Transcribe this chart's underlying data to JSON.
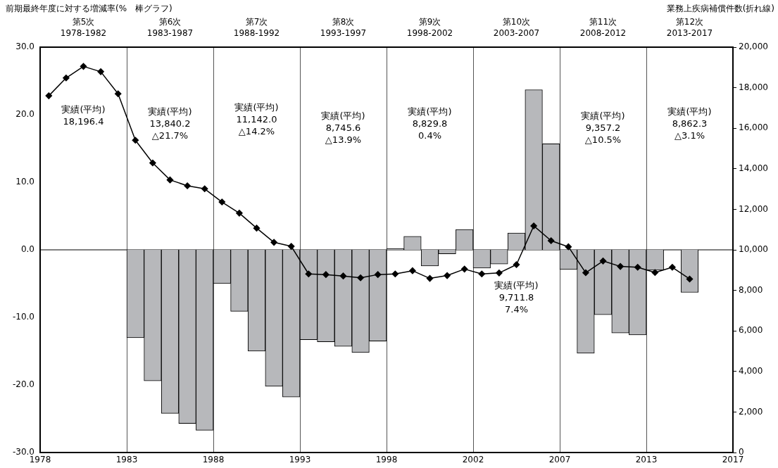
{
  "chart_data": {
    "type": "bar",
    "ylabel": "前期最終年度に対する増減率(%　棒グラフ)",
    "y2label": "業務上疾病補償件数(折れ線)",
    "x": [
      1978,
      1979,
      1980,
      1981,
      1982,
      1983,
      1984,
      1985,
      1986,
      1987,
      1988,
      1989,
      1990,
      1991,
      1992,
      1993,
      1994,
      1995,
      1996,
      1997,
      1998,
      1999,
      2000,
      2001,
      2002,
      2003,
      2004,
      2005,
      2006,
      2007,
      2008,
      2009,
      2010,
      2011,
      2012,
      2013,
      2014,
      2015
    ],
    "series": [
      {
        "color": "#b7b8bb",
        "values": [
          null,
          null,
          null,
          null,
          null,
          -13.0,
          -19.4,
          -24.2,
          -25.7,
          -26.7,
          -5.0,
          -9.1,
          -15.0,
          -20.2,
          -21.8,
          -13.3,
          -13.6,
          -14.3,
          -15.2,
          -13.5,
          0.2,
          2.0,
          -2.4,
          -0.6,
          3.0,
          -2.7,
          -2.1,
          2.5,
          23.7,
          15.7,
          -2.9,
          -15.3,
          -9.6,
          -12.3,
          -12.6,
          -3.0,
          0.0,
          -6.3
        ]
      },
      {
        "type": "line",
        "axis": "y2",
        "color": "#000000",
        "marker": "diamond",
        "values": [
          17600,
          18480,
          19050,
          18790,
          17700,
          15410,
          14290,
          13450,
          13160,
          13010,
          12360,
          11810,
          11070,
          10370,
          10170,
          8810,
          8780,
          8710,
          8620,
          8780,
          8810,
          8970,
          8590,
          8730,
          9050,
          8810,
          8860,
          9270,
          11180,
          10450,
          10150,
          8870,
          9450,
          9180,
          9140,
          8880,
          9140,
          8560
        ]
      }
    ],
    "xlim": [
      1977.5,
      2017.5
    ],
    "xticks": [
      {
        "value": 1977.5,
        "label": "1978"
      },
      {
        "value": 1982.5,
        "label": "1983"
      },
      {
        "value": 1987.5,
        "label": "1988"
      },
      {
        "value": 1992.5,
        "label": "1993"
      },
      {
        "value": 1997.5,
        "label": "1998"
      },
      {
        "value": 2002.5,
        "label": "2002"
      },
      {
        "value": 2007.5,
        "label": "2007"
      },
      {
        "value": 2012.5,
        "label": "2013"
      },
      {
        "value": 2017.5,
        "label": "2017"
      }
    ],
    "ylim": [
      -30,
      30
    ],
    "yticks": [
      {
        "value": 30,
        "label": "30.0"
      },
      {
        "value": 20,
        "label": "20.0"
      },
      {
        "value": 10,
        "label": "10.0"
      },
      {
        "value": 0,
        "label": "0.0"
      },
      {
        "value": -10,
        "label": "-10.0"
      },
      {
        "value": -20,
        "label": "-20.0"
      },
      {
        "value": -30,
        "label": "-30.0"
      }
    ],
    "y2lim": [
      0,
      20000
    ],
    "y2ticks": [
      0,
      {
        "value": 2000,
        "label": "2,000"
      },
      {
        "value": 4000,
        "label": "4,000"
      },
      {
        "value": 6000,
        "label": "6,000"
      },
      {
        "value": 8000,
        "label": "8,000"
      },
      {
        "value": 10000,
        "label": "10,000"
      },
      {
        "value": 12000,
        "label": "12,000"
      },
      {
        "value": 14000,
        "label": "14,000"
      },
      {
        "value": 16000,
        "label": "16,000"
      },
      {
        "value": 18000,
        "label": "18,000"
      },
      {
        "value": 20000,
        "label": "20,000"
      }
    ],
    "grid": "x",
    "legend": false,
    "ref_lines": [
      {
        "axis": "y",
        "value": 0,
        "color": "#000000"
      }
    ],
    "annotations": [
      "第5次\n1978-1982",
      "第6次\n1983-1987",
      "第7次\n1988-1992",
      "第8次\n1993-1997",
      "第9次\n1998-2002",
      "第10次\n2003-2007",
      "第11次\n2008-2012",
      "第12次\n2013-2017",
      "実績(平均)\n18,196.4",
      "実績(平均)\n13,840.2\n△21.7%",
      "実績(平均)\n11,142.0\n△14.2%",
      "実績(平均)\n8,745.6\n△13.9%",
      "実績(平均)\n8,829.8\n0.4%",
      "実績(平均)\n9,711.8\n7.4%",
      "実績(平均)\n9,357.2\n△10.5%",
      "実績(平均)\n8,862.3\n△3.1%"
    ]
  }
}
